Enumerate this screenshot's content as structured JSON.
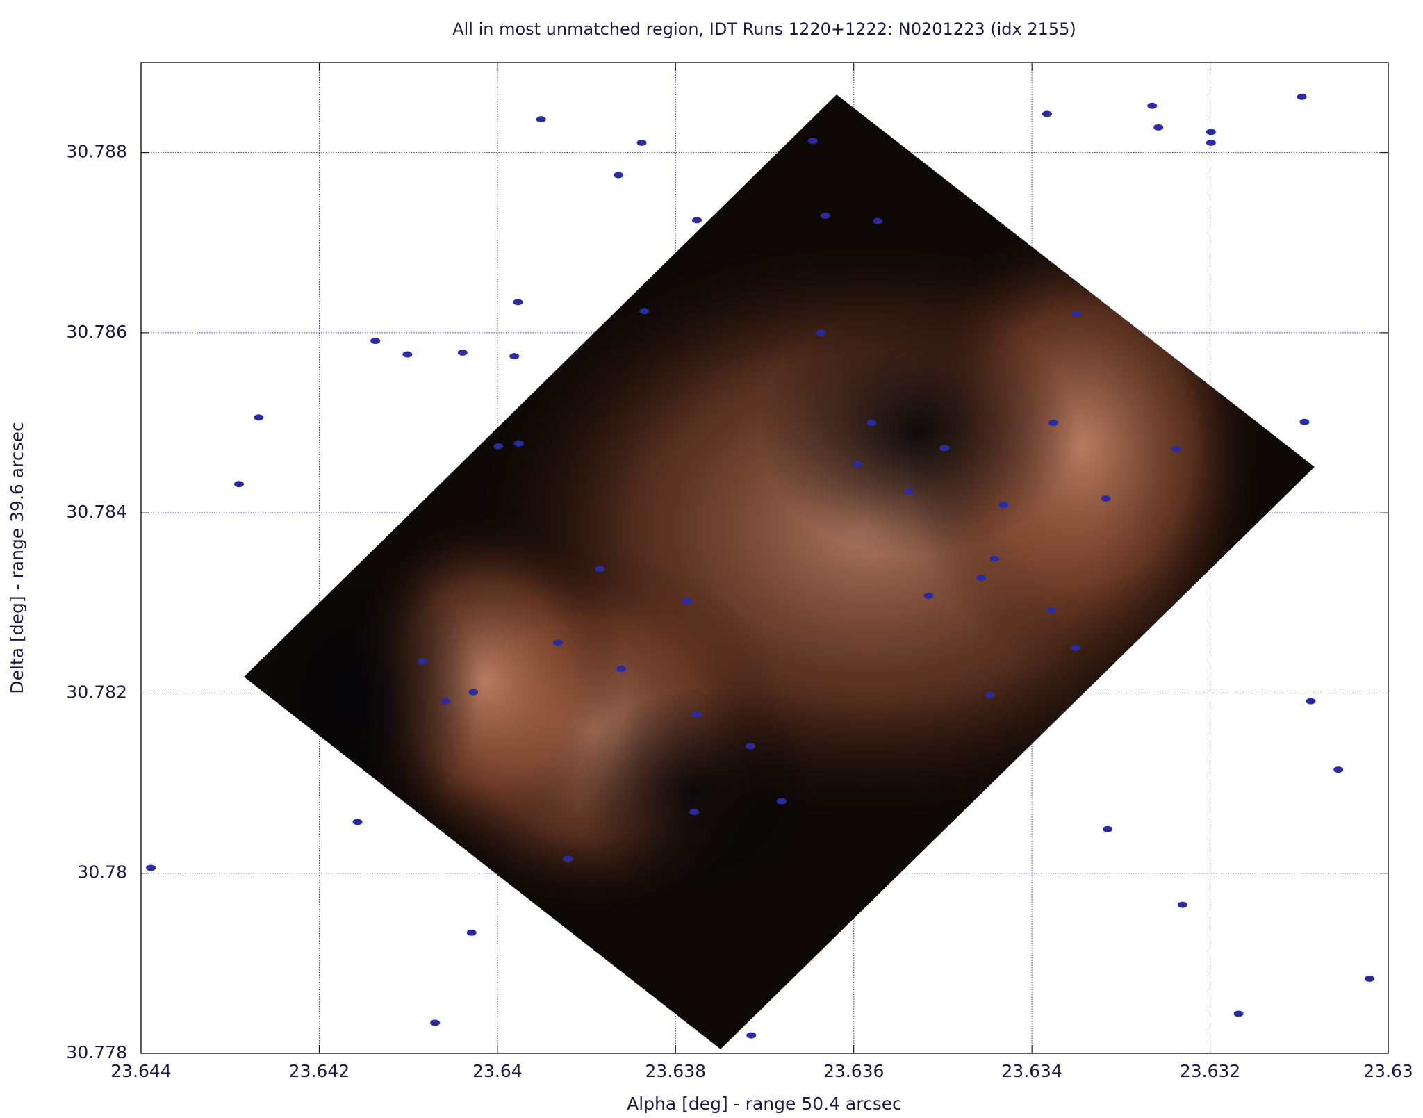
{
  "chart_data": {
    "type": "scatter",
    "title": "All in most unmatched region, IDT Runs 1220+1222: N0201223 (idx 2155)",
    "x_label": "Alpha [deg] - range 50.4 arcsec",
    "y_label": "Delta [deg] - range 39.6 arcsec",
    "xlim": [
      23.644,
      23.63
    ],
    "ylim": [
      30.778,
      30.789
    ],
    "xticks": [
      23.644,
      23.642,
      23.64,
      23.638,
      23.636,
      23.634,
      23.632,
      23.63
    ],
    "yticks": [
      30.778,
      30.78,
      30.782,
      30.784,
      30.786,
      30.788
    ],
    "grid": true,
    "color": "#2b2ba0",
    "x": [
      23.63951,
      23.63838,
      23.63864,
      23.63776,
      23.63977,
      23.64137,
      23.64039,
      23.63981,
      23.64268,
      23.6429,
      23.64101,
      23.64389,
      23.64157,
      23.64029,
      23.6407,
      23.63715,
      23.63383,
      23.63265,
      23.63258,
      23.63199,
      23.63199,
      23.63097,
      23.63094,
      23.63087,
      23.63056,
      23.63315,
      23.63231,
      23.63168,
      23.63021,
      23.63646,
      23.63632,
      23.63573,
      23.63637,
      23.63835,
      23.6335,
      23.6358,
      23.63498,
      23.63596,
      23.63538,
      23.63432,
      23.63442,
      23.63516,
      23.63787,
      23.63932,
      23.63976,
      23.63999,
      23.64058,
      23.64027,
      23.64084,
      23.63861,
      23.63776,
      23.63716,
      23.63681,
      23.63779,
      23.63921,
      23.63447,
      23.63351,
      23.63317,
      23.63376,
      23.63238,
      23.63378,
      23.63457,
      23.63885
    ],
    "values": [
      30.78837,
      30.78811,
      30.78775,
      30.78725,
      30.78634,
      30.78591,
      30.78578,
      30.78574,
      30.78506,
      30.78432,
      30.78576,
      30.78006,
      30.78057,
      30.77934,
      30.77834,
      30.7782,
      30.78843,
      30.78852,
      30.78828,
      30.78823,
      30.78811,
      30.78862,
      30.78501,
      30.78191,
      30.78115,
      30.78049,
      30.77965,
      30.77844,
      30.77883,
      30.78813,
      30.7873,
      30.78724,
      30.786,
      30.78624,
      30.78621,
      30.785,
      30.78472,
      30.78454,
      30.78424,
      30.78409,
      30.78349,
      30.78308,
      30.78302,
      30.78256,
      30.78477,
      30.78474,
      30.78191,
      30.78201,
      30.78235,
      30.78227,
      30.78176,
      30.78141,
      30.7808,
      30.78068,
      30.78016,
      30.78198,
      30.7825,
      30.78416,
      30.785,
      30.78471,
      30.78292,
      30.78328,
      30.78338
    ]
  }
}
